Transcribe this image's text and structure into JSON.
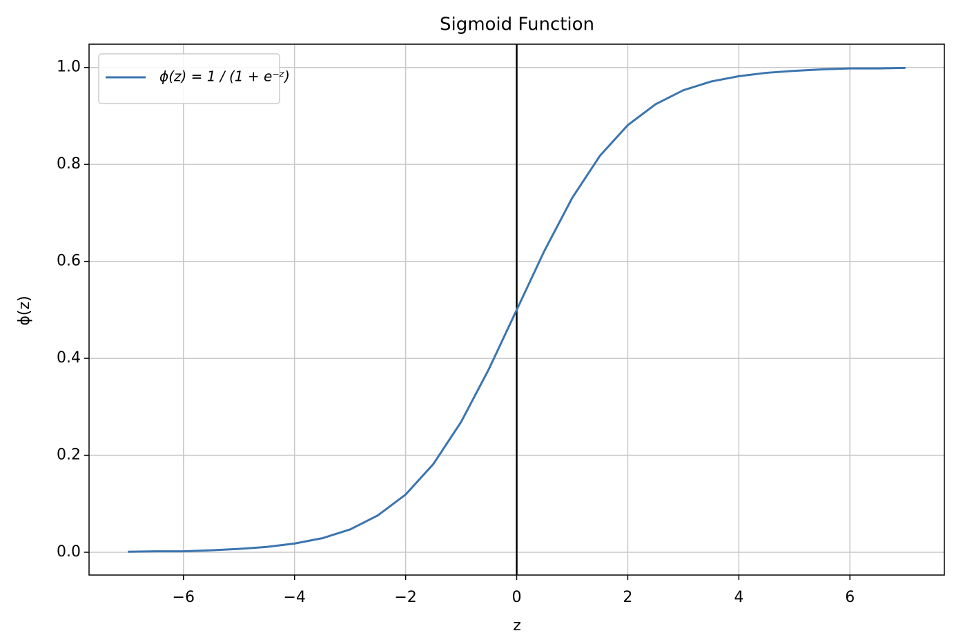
{
  "chart_data": {
    "type": "line",
    "title": "Sigmoid Function",
    "x_label": "z",
    "y_label": "ϕ(z)",
    "x": [
      -7,
      -6.5,
      -6,
      -5.5,
      -5,
      -4.5,
      -4,
      -3.5,
      -3,
      -2.5,
      -2,
      -1.5,
      -1,
      -0.5,
      0,
      0.5,
      1,
      1.5,
      2,
      2.5,
      3,
      3.5,
      4,
      4.5,
      5,
      5.5,
      6,
      6.5,
      7
    ],
    "series": [
      {
        "name": "ϕ(z) = 1 / (1 + e⁻ᶻ)",
        "color": "#3b75af",
        "values": [
          0.001,
          0.002,
          0.002,
          0.004,
          0.007,
          0.011,
          0.018,
          0.029,
          0.047,
          0.076,
          0.119,
          0.182,
          0.269,
          0.378,
          0.5,
          0.622,
          0.731,
          0.818,
          0.881,
          0.924,
          0.953,
          0.971,
          0.982,
          0.989,
          0.993,
          0.996,
          0.998,
          0.998,
          0.999
        ]
      }
    ],
    "vline": 0,
    "xlim": [
      -7.7,
      7.7
    ],
    "ylim": [
      -0.047,
      1.048
    ],
    "xticks": [
      {
        "value": -6,
        "label": "−6"
      },
      {
        "value": -4,
        "label": "−4"
      },
      {
        "value": -2,
        "label": "−2"
      },
      0,
      2,
      4,
      6
    ],
    "yticks": [
      {
        "value": 0,
        "label": "0.0"
      },
      0.2,
      0.4,
      0.6,
      0.8,
      {
        "value": 1,
        "label": "1.0"
      }
    ],
    "grid": true,
    "legend": "upper left"
  }
}
